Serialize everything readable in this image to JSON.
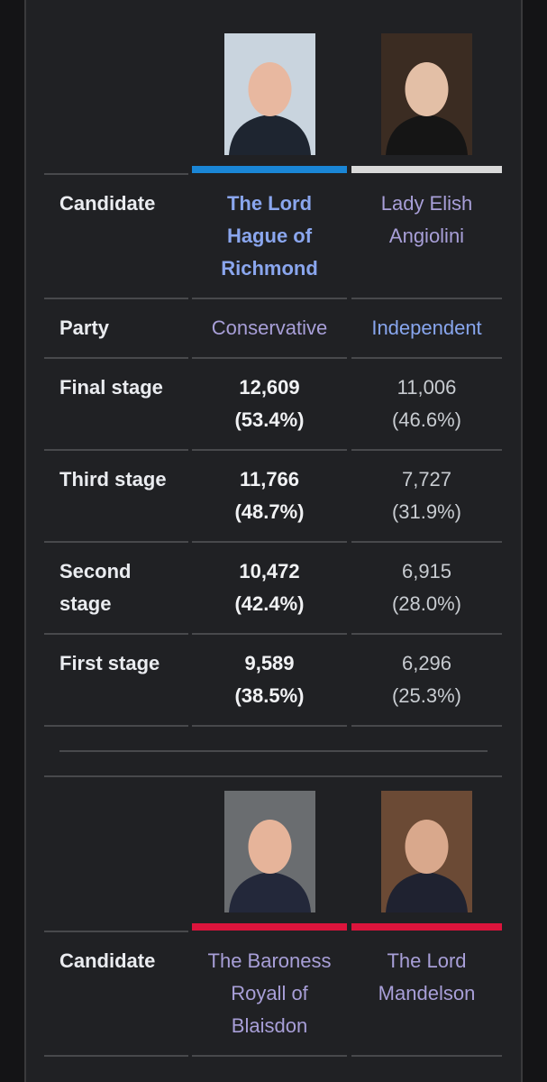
{
  "tables": [
    {
      "header_label": "Candidate",
      "candidates": [
        {
          "name": "The Lord Hague of Richmond",
          "name_color": "#8aa6ee",
          "bar_color": "#1a86d6",
          "bold": true
        },
        {
          "name": "Lady Elish Angiolini",
          "name_color": "#a89fd8",
          "bar_color": "#d9d9d9"
        }
      ],
      "rows": [
        {
          "label": "Party",
          "cells": [
            {
              "lines": [
                "Conservative"
              ],
              "color": "#a89fd8"
            },
            {
              "lines": [
                "Independent"
              ],
              "color": "#88a6ee"
            }
          ]
        },
        {
          "label": "Final stage",
          "cells": [
            {
              "lines": [
                "12,609",
                "(53.4%)"
              ]
            },
            {
              "lines": [
                "11,006",
                "(46.6%)"
              ]
            }
          ]
        },
        {
          "label": "Third stage",
          "cells": [
            {
              "lines": [
                "11,766",
                "(48.7%)"
              ]
            },
            {
              "lines": [
                "7,727",
                "(31.9%)"
              ]
            }
          ]
        },
        {
          "label": "Second stage",
          "cells": [
            {
              "lines": [
                "10,472",
                "(42.4%)"
              ]
            },
            {
              "lines": [
                "6,915",
                "(28.0%)"
              ]
            }
          ]
        },
        {
          "label": "First stage",
          "cells": [
            {
              "lines": [
                "9,589",
                "(38.5%)"
              ]
            },
            {
              "lines": [
                "6,296",
                "(25.3%)"
              ]
            }
          ]
        }
      ]
    },
    {
      "header_label": "Candidate",
      "candidates": [
        {
          "name": "The Baroness Royall of Blaisdon",
          "name_color": "#a89fd8",
          "bar_color": "#dc143c"
        },
        {
          "name": "The Lord Mandelson",
          "name_color": "#a89fd8",
          "bar_color": "#dc143c"
        }
      ]
    }
  ]
}
